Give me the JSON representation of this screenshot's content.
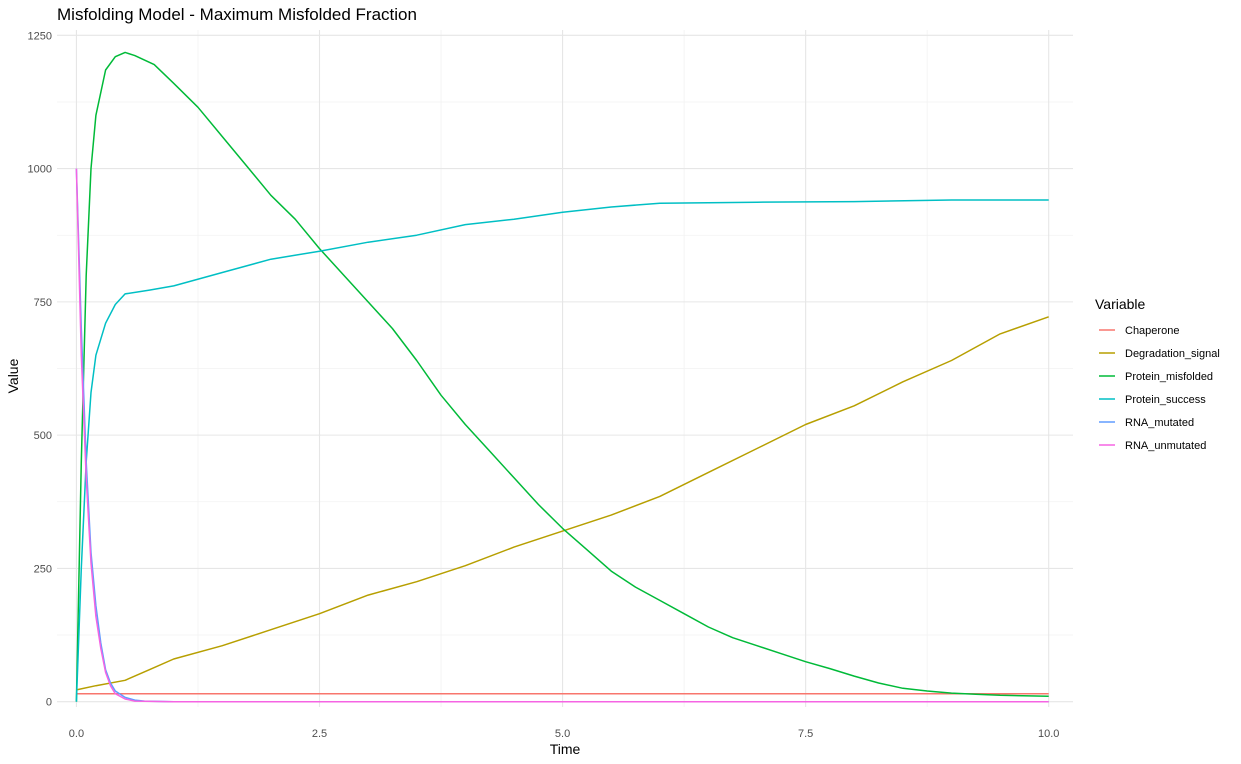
{
  "chart_data": {
    "type": "line",
    "title": "Misfolding Model - Maximum Misfolded Fraction",
    "xlabel": "Time",
    "ylabel": "Value",
    "xlim": [
      -0.2,
      10.25
    ],
    "ylim": [
      -10,
      1260
    ],
    "x_ticks": [
      0,
      2.5,
      5,
      7.5,
      10
    ],
    "x_tick_labels": [
      "0.0",
      "2.5",
      "5.0",
      "7.5",
      "10.0"
    ],
    "y_ticks": [
      0,
      250,
      500,
      750,
      1000,
      1250
    ],
    "y_tick_labels": [
      "0",
      "250",
      "500",
      "750",
      "1000",
      "1250"
    ],
    "grid": true,
    "legend": {
      "title": "Variable",
      "position": "right"
    },
    "series": [
      {
        "name": "Chaperone",
        "color": "#F8766D",
        "points": [
          [
            0,
            15
          ],
          [
            10,
            15
          ]
        ]
      },
      {
        "name": "Degradation_signal",
        "color": "#B79F00",
        "points": [
          [
            0,
            22
          ],
          [
            0.2,
            30
          ],
          [
            0.5,
            40
          ],
          [
            0.75,
            60
          ],
          [
            1.0,
            80
          ],
          [
            1.5,
            105
          ],
          [
            2.0,
            135
          ],
          [
            2.5,
            165
          ],
          [
            3.0,
            200
          ],
          [
            3.5,
            225
          ],
          [
            4.0,
            255
          ],
          [
            4.5,
            290
          ],
          [
            5.0,
            320
          ],
          [
            5.5,
            350
          ],
          [
            6.0,
            385
          ],
          [
            6.5,
            430
          ],
          [
            7.0,
            475
          ],
          [
            7.5,
            520
          ],
          [
            8.0,
            555
          ],
          [
            8.5,
            600
          ],
          [
            9.0,
            640
          ],
          [
            9.5,
            690
          ],
          [
            10.0,
            722
          ]
        ]
      },
      {
        "name": "Protein_misfolded",
        "color": "#00BA38",
        "points": [
          [
            0,
            0
          ],
          [
            0.05,
            450
          ],
          [
            0.1,
            800
          ],
          [
            0.15,
            1000
          ],
          [
            0.2,
            1100
          ],
          [
            0.3,
            1185
          ],
          [
            0.4,
            1210
          ],
          [
            0.5,
            1218
          ],
          [
            0.6,
            1212
          ],
          [
            0.8,
            1195
          ],
          [
            1.0,
            1160
          ],
          [
            1.25,
            1115
          ],
          [
            1.5,
            1060
          ],
          [
            1.75,
            1005
          ],
          [
            2.0,
            950
          ],
          [
            2.25,
            905
          ],
          [
            2.5,
            850
          ],
          [
            2.75,
            800
          ],
          [
            3.0,
            750
          ],
          [
            3.25,
            700
          ],
          [
            3.5,
            640
          ],
          [
            3.75,
            575
          ],
          [
            4.0,
            520
          ],
          [
            4.25,
            470
          ],
          [
            4.5,
            420
          ],
          [
            4.75,
            370
          ],
          [
            5.0,
            325
          ],
          [
            5.25,
            285
          ],
          [
            5.5,
            245
          ],
          [
            5.75,
            215
          ],
          [
            6.0,
            190
          ],
          [
            6.25,
            165
          ],
          [
            6.5,
            140
          ],
          [
            6.75,
            120
          ],
          [
            7.0,
            105
          ],
          [
            7.25,
            90
          ],
          [
            7.5,
            75
          ],
          [
            7.75,
            62
          ],
          [
            8.0,
            48
          ],
          [
            8.25,
            35
          ],
          [
            8.5,
            25
          ],
          [
            8.75,
            20
          ],
          [
            9.0,
            16
          ],
          [
            9.25,
            14
          ],
          [
            9.5,
            12
          ],
          [
            10.0,
            10
          ]
        ]
      },
      {
        "name": "Protein_success",
        "color": "#00BFC4",
        "points": [
          [
            0,
            0
          ],
          [
            0.05,
            250
          ],
          [
            0.1,
            450
          ],
          [
            0.15,
            580
          ],
          [
            0.2,
            650
          ],
          [
            0.3,
            710
          ],
          [
            0.4,
            745
          ],
          [
            0.5,
            765
          ],
          [
            0.75,
            772
          ],
          [
            1.0,
            780
          ],
          [
            1.5,
            805
          ],
          [
            2.0,
            830
          ],
          [
            2.5,
            845
          ],
          [
            3.0,
            862
          ],
          [
            3.5,
            875
          ],
          [
            4.0,
            895
          ],
          [
            4.5,
            905
          ],
          [
            5.0,
            918
          ],
          [
            5.5,
            928
          ],
          [
            6.0,
            935
          ],
          [
            7.0,
            937
          ],
          [
            8.0,
            938
          ],
          [
            9.0,
            941
          ],
          [
            10.0,
            941
          ]
        ]
      },
      {
        "name": "RNA_mutated",
        "color": "#619CFF",
        "points": [
          [
            0,
            1000
          ],
          [
            0.05,
            700
          ],
          [
            0.1,
            450
          ],
          [
            0.15,
            280
          ],
          [
            0.2,
            180
          ],
          [
            0.25,
            110
          ],
          [
            0.3,
            60
          ],
          [
            0.35,
            35
          ],
          [
            0.4,
            20
          ],
          [
            0.5,
            8
          ],
          [
            0.6,
            3
          ],
          [
            0.7,
            1
          ],
          [
            1.0,
            0
          ],
          [
            10.0,
            0
          ]
        ]
      },
      {
        "name": "RNA_unmutated",
        "color": "#F564E3",
        "points": [
          [
            0,
            1000
          ],
          [
            0.05,
            650
          ],
          [
            0.1,
            420
          ],
          [
            0.15,
            260
          ],
          [
            0.2,
            160
          ],
          [
            0.25,
            100
          ],
          [
            0.3,
            55
          ],
          [
            0.35,
            30
          ],
          [
            0.4,
            15
          ],
          [
            0.5,
            5
          ],
          [
            0.6,
            1
          ],
          [
            1.0,
            0
          ],
          [
            10.0,
            0
          ]
        ]
      }
    ]
  }
}
